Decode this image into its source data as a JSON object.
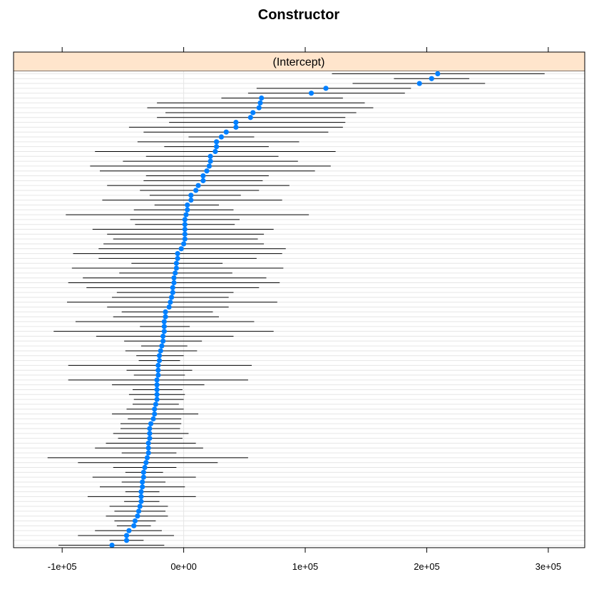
{
  "chart_data": {
    "type": "dotplot",
    "title": "Constructor",
    "panel_label": "(Intercept)",
    "xlabel": "",
    "ylabel": "",
    "xlim": [
      -140000,
      330000
    ],
    "x_ticks": [
      -100000,
      0,
      100000,
      200000,
      300000
    ],
    "x_tick_labels": [
      "-1e+05",
      "0e+00",
      "1e+05",
      "2e+05",
      "3e+05"
    ],
    "grid": true,
    "colors": {
      "point": "#0080ff",
      "interval": "#000000",
      "strip": "#ffe5cc",
      "row_grid": "#e6e6e6",
      "zero_line": "#e6e6e6"
    },
    "points": [
      {
        "est": 209000,
        "lo": 122000,
        "hi": 297000
      },
      {
        "est": 204000,
        "lo": 173000,
        "hi": 235000
      },
      {
        "est": 194000,
        "lo": 139000,
        "hi": 248000
      },
      {
        "est": 117000,
        "lo": 60000,
        "hi": 187000
      },
      {
        "est": 105000,
        "lo": 53000,
        "hi": 182000
      },
      {
        "est": 64000,
        "lo": 31000,
        "hi": 131000
      },
      {
        "est": 63000,
        "lo": -22000,
        "hi": 149000
      },
      {
        "est": 62000,
        "lo": -30000,
        "hi": 156000
      },
      {
        "est": 57000,
        "lo": -15000,
        "hi": 142000
      },
      {
        "est": 55000,
        "lo": -22000,
        "hi": 133000
      },
      {
        "est": 43000,
        "lo": -12000,
        "hi": 133000
      },
      {
        "est": 43000,
        "lo": -45000,
        "hi": 131000
      },
      {
        "est": 35000,
        "lo": -33000,
        "hi": 119000
      },
      {
        "est": 31000,
        "lo": 4000,
        "hi": 58000
      },
      {
        "est": 27000,
        "lo": -38000,
        "hi": 95000
      },
      {
        "est": 27000,
        "lo": -16000,
        "hi": 70000
      },
      {
        "est": 26000,
        "lo": -73000,
        "hi": 125000
      },
      {
        "est": 22000,
        "lo": -31000,
        "hi": 78000
      },
      {
        "est": 22000,
        "lo": -50000,
        "hi": 94000
      },
      {
        "est": 21000,
        "lo": -77000,
        "hi": 121000
      },
      {
        "est": 19000,
        "lo": -69000,
        "hi": 108000
      },
      {
        "est": 16000,
        "lo": -31000,
        "hi": 70000
      },
      {
        "est": 16000,
        "lo": -33000,
        "hi": 65000
      },
      {
        "est": 12000,
        "lo": -63000,
        "hi": 87000
      },
      {
        "est": 10000,
        "lo": -36000,
        "hi": 62000
      },
      {
        "est": 6000,
        "lo": -28000,
        "hi": 47000
      },
      {
        "est": 6000,
        "lo": -67000,
        "hi": 81000
      },
      {
        "est": 3000,
        "lo": -24000,
        "hi": 29000
      },
      {
        "est": 3000,
        "lo": -41000,
        "hi": 41000
      },
      {
        "est": 2000,
        "lo": -97000,
        "hi": 103000
      },
      {
        "est": 1000,
        "lo": -44000,
        "hi": 46000
      },
      {
        "est": 1000,
        "lo": -40000,
        "hi": 42000
      },
      {
        "est": 1000,
        "lo": -75000,
        "hi": 74000
      },
      {
        "est": 1000,
        "lo": -63000,
        "hi": 66000
      },
      {
        "est": 1000,
        "lo": -58000,
        "hi": 61000
      },
      {
        "est": 0,
        "lo": -66000,
        "hi": 66000
      },
      {
        "est": -2000,
        "lo": -70000,
        "hi": 84000
      },
      {
        "est": -5000,
        "lo": -91000,
        "hi": 81000
      },
      {
        "est": -5000,
        "lo": -70000,
        "hi": 60000
      },
      {
        "est": -6000,
        "lo": -43000,
        "hi": 32000
      },
      {
        "est": -6000,
        "lo": -92000,
        "hi": 82000
      },
      {
        "est": -7000,
        "lo": -53000,
        "hi": 40000
      },
      {
        "est": -8000,
        "lo": -83000,
        "hi": 68000
      },
      {
        "est": -8000,
        "lo": -95000,
        "hi": 79000
      },
      {
        "est": -9000,
        "lo": -80000,
        "hi": 62000
      },
      {
        "est": -9000,
        "lo": -55000,
        "hi": 41000
      },
      {
        "est": -10000,
        "lo": -59000,
        "hi": 37000
      },
      {
        "est": -11000,
        "lo": -96000,
        "hi": 77000
      },
      {
        "est": -12000,
        "lo": -63000,
        "hi": 37000
      },
      {
        "est": -15000,
        "lo": -51000,
        "hi": 24000
      },
      {
        "est": -15000,
        "lo": -58000,
        "hi": 29000
      },
      {
        "est": -16000,
        "lo": -89000,
        "hi": 58000
      },
      {
        "est": -16000,
        "lo": -36000,
        "hi": 5000
      },
      {
        "est": -16000,
        "lo": -107000,
        "hi": 74000
      },
      {
        "est": -17000,
        "lo": -72000,
        "hi": 41000
      },
      {
        "est": -17000,
        "lo": -49000,
        "hi": 15000
      },
      {
        "est": -18000,
        "lo": -35000,
        "hi": 3000
      },
      {
        "est": -19000,
        "lo": -48000,
        "hi": 11000
      },
      {
        "est": -20000,
        "lo": -39000,
        "hi": 0
      },
      {
        "est": -20000,
        "lo": -37000,
        "hi": -3000
      },
      {
        "est": -21000,
        "lo": -95000,
        "hi": 56000
      },
      {
        "est": -21000,
        "lo": -47000,
        "hi": 7000
      },
      {
        "est": -21000,
        "lo": -41000,
        "hi": 1000
      },
      {
        "est": -22000,
        "lo": -95000,
        "hi": 53000
      },
      {
        "est": -22000,
        "lo": -59000,
        "hi": 17000
      },
      {
        "est": -22000,
        "lo": -42000,
        "hi": -1000
      },
      {
        "est": -22000,
        "lo": -45000,
        "hi": 1000
      },
      {
        "est": -22000,
        "lo": -41000,
        "hi": 0
      },
      {
        "est": -23000,
        "lo": -42000,
        "hi": -4000
      },
      {
        "est": -24000,
        "lo": -47000,
        "hi": 0
      },
      {
        "est": -24000,
        "lo": -59000,
        "hi": 12000
      },
      {
        "est": -25000,
        "lo": -46000,
        "hi": -2000
      },
      {
        "est": -27000,
        "lo": -52000,
        "hi": -2000
      },
      {
        "est": -28000,
        "lo": -52000,
        "hi": -3000
      },
      {
        "est": -28000,
        "lo": -58000,
        "hi": 4000
      },
      {
        "est": -28000,
        "lo": -54000,
        "hi": -1000
      },
      {
        "est": -29000,
        "lo": -64000,
        "hi": 10000
      },
      {
        "est": -29000,
        "lo": -73000,
        "hi": 16000
      },
      {
        "est": -29000,
        "lo": -51000,
        "hi": -6000
      },
      {
        "est": -30000,
        "lo": -112000,
        "hi": 53000
      },
      {
        "est": -31000,
        "lo": -87000,
        "hi": 28000
      },
      {
        "est": -32000,
        "lo": -58000,
        "hi": -6000
      },
      {
        "est": -33000,
        "lo": -48000,
        "hi": -17000
      },
      {
        "est": -33000,
        "lo": -75000,
        "hi": 10000
      },
      {
        "est": -34000,
        "lo": -51000,
        "hi": -15000
      },
      {
        "est": -34000,
        "lo": -69000,
        "hi": 1000
      },
      {
        "est": -35000,
        "lo": -48000,
        "hi": -20000
      },
      {
        "est": -35000,
        "lo": -79000,
        "hi": 10000
      },
      {
        "est": -35000,
        "lo": -49000,
        "hi": -20000
      },
      {
        "est": -36000,
        "lo": -61000,
        "hi": -13000
      },
      {
        "est": -37000,
        "lo": -57000,
        "hi": -15000
      },
      {
        "est": -38000,
        "lo": -64000,
        "hi": -13000
      },
      {
        "est": -40000,
        "lo": -57000,
        "hi": -23000
      },
      {
        "est": -41000,
        "lo": -55000,
        "hi": -27000
      },
      {
        "est": -45000,
        "lo": -73000,
        "hi": -18000
      },
      {
        "est": -47000,
        "lo": -87000,
        "hi": -8000
      },
      {
        "est": -47000,
        "lo": -61000,
        "hi": -33000
      },
      {
        "est": -59000,
        "lo": -103000,
        "hi": -16000
      }
    ]
  }
}
